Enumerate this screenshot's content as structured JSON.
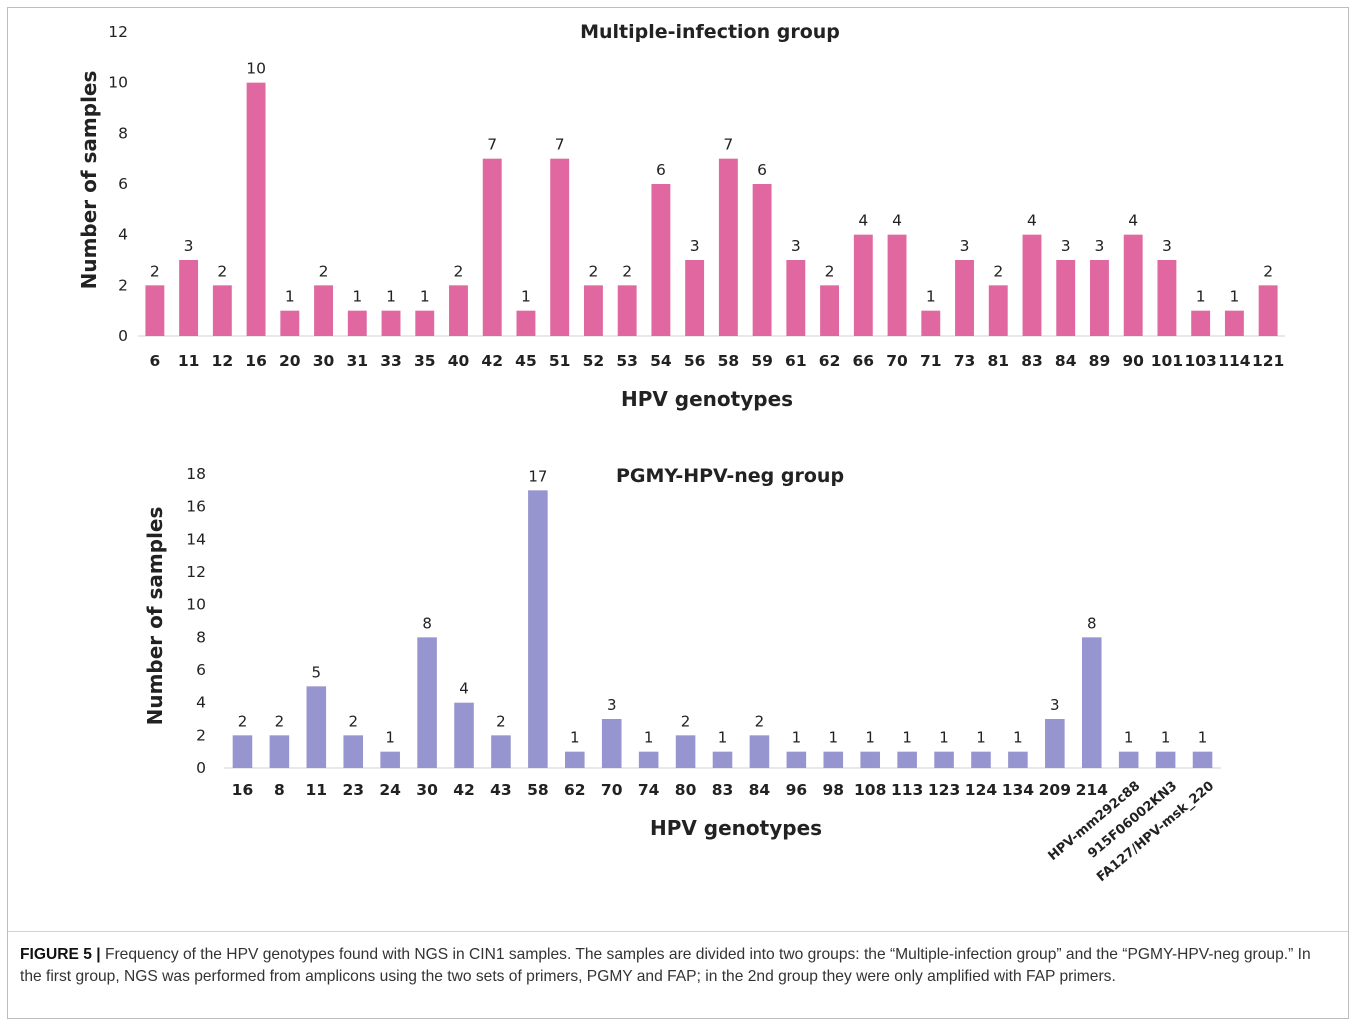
{
  "chart_data": [
    {
      "type": "bar",
      "title": "Multiple-infection group",
      "xlabel": "HPV genotypes",
      "ylabel": "Number of samples",
      "ylim": [
        0,
        12
      ],
      "yticks": [
        "0",
        "2",
        "4",
        "6",
        "8",
        "10",
        "12"
      ],
      "grid": false,
      "bar_color": "#e0679f",
      "categories": [
        "6",
        "11",
        "12",
        "16",
        "20",
        "30",
        "31",
        "33",
        "35",
        "40",
        "42",
        "45",
        "51",
        "52",
        "53",
        "54",
        "56",
        "58",
        "59",
        "61",
        "62",
        "66",
        "70",
        "71",
        "73",
        "81",
        "83",
        "84",
        "89",
        "90",
        "101",
        "103",
        "114",
        "121"
      ],
      "values": [
        2,
        3,
        2,
        10,
        1,
        2,
        1,
        1,
        1,
        2,
        7,
        1,
        7,
        2,
        2,
        6,
        3,
        7,
        6,
        3,
        2,
        4,
        4,
        1,
        3,
        2,
        4,
        3,
        3,
        4,
        3,
        1,
        1,
        2
      ],
      "data_labels": [
        "2",
        "3",
        "2",
        "10",
        "1",
        "2",
        "1",
        "1",
        "1",
        "2",
        "7",
        "1",
        "7",
        "2",
        "2",
        "6",
        "3",
        "7",
        "6",
        "3",
        "2",
        "4",
        "4",
        "1",
        "3",
        "2",
        "4",
        "3",
        "3",
        "4",
        "3",
        "1",
        "1",
        "2"
      ]
    },
    {
      "type": "bar",
      "title": "PGMY-HPV-neg group",
      "xlabel": "HPV genotypes",
      "ylabel": "Number of samples",
      "ylim": [
        0,
        18
      ],
      "yticks": [
        "0",
        "2",
        "4",
        "6",
        "8",
        "10",
        "12",
        "14",
        "16",
        "18"
      ],
      "grid": false,
      "bar_color": "#9695cf",
      "categories": [
        "16",
        "8",
        "11",
        "23",
        "24",
        "30",
        "42",
        "43",
        "58",
        "62",
        "70",
        "74",
        "80",
        "83",
        "84",
        "96",
        "98",
        "108",
        "113",
        "123",
        "124",
        "134",
        "209",
        "214",
        "HPV-mm292c88",
        "915F06002KN3",
        "FA127/HPV-msk_220"
      ],
      "values": [
        2,
        2,
        5,
        2,
        1,
        8,
        4,
        2,
        17,
        1,
        3,
        1,
        2,
        1,
        2,
        1,
        1,
        1,
        1,
        1,
        1,
        1,
        3,
        8,
        1,
        1,
        1
      ],
      "data_labels": [
        "2",
        "2",
        "5",
        "2",
        "1",
        "8",
        "4",
        "2",
        "17",
        "1",
        "3",
        "1",
        "2",
        "1",
        "2",
        "1",
        "1",
        "1",
        "1",
        "1",
        "1",
        "1",
        "3",
        "8",
        "1",
        "1",
        "1"
      ]
    }
  ],
  "caption": {
    "label": "FIGURE 5 |",
    "text": " Frequency of the HPV genotypes found with NGS in CIN1 samples. The samples are divided into two groups: the “Multiple-infection group” and the “PGMY-HPV-neg group.” In the first group, NGS was performed from amplicons using the two sets of primers, PGMY and FAP; in the 2nd group they were only amplified with FAP primers."
  }
}
